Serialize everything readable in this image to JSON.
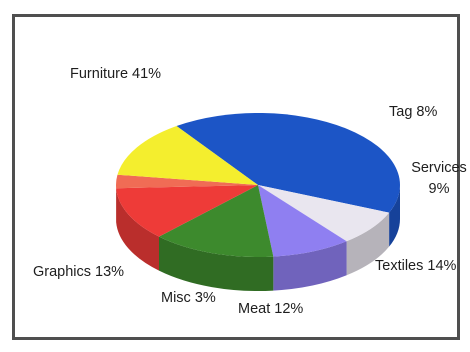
{
  "chart_data": {
    "type": "pie",
    "title": "",
    "style": "3d-exploded-edge",
    "slices": [
      {
        "label": "Furniture",
        "value": 41,
        "pct": "41%",
        "color": "#1c55c6"
      },
      {
        "label": "Tag",
        "value": 8,
        "pct": "8%",
        "color": "#e9e6ef"
      },
      {
        "label": "Services",
        "value": 9,
        "pct": "9%",
        "color": "#8f7ff1"
      },
      {
        "label": "Textiles",
        "value": 14,
        "pct": "14%",
        "color": "#3d8a2d"
      },
      {
        "label": "Meat",
        "value": 12,
        "pct": "12%",
        "color": "#ee3b38"
      },
      {
        "label": "Misc",
        "value": 3,
        "pct": "3%",
        "color": "#f06c55"
      },
      {
        "label": "Graphics",
        "value": 13,
        "pct": "13%",
        "color": "#f4ee2e"
      }
    ]
  },
  "labels": {
    "furniture": "Furniture 41%",
    "tag": "Tag 8%",
    "services_1": "Services",
    "services_2": "9%",
    "textiles": "Textiles 14%",
    "meat": "Meat 12%",
    "misc": "Misc 3%",
    "graphics": "Graphics 13%"
  }
}
